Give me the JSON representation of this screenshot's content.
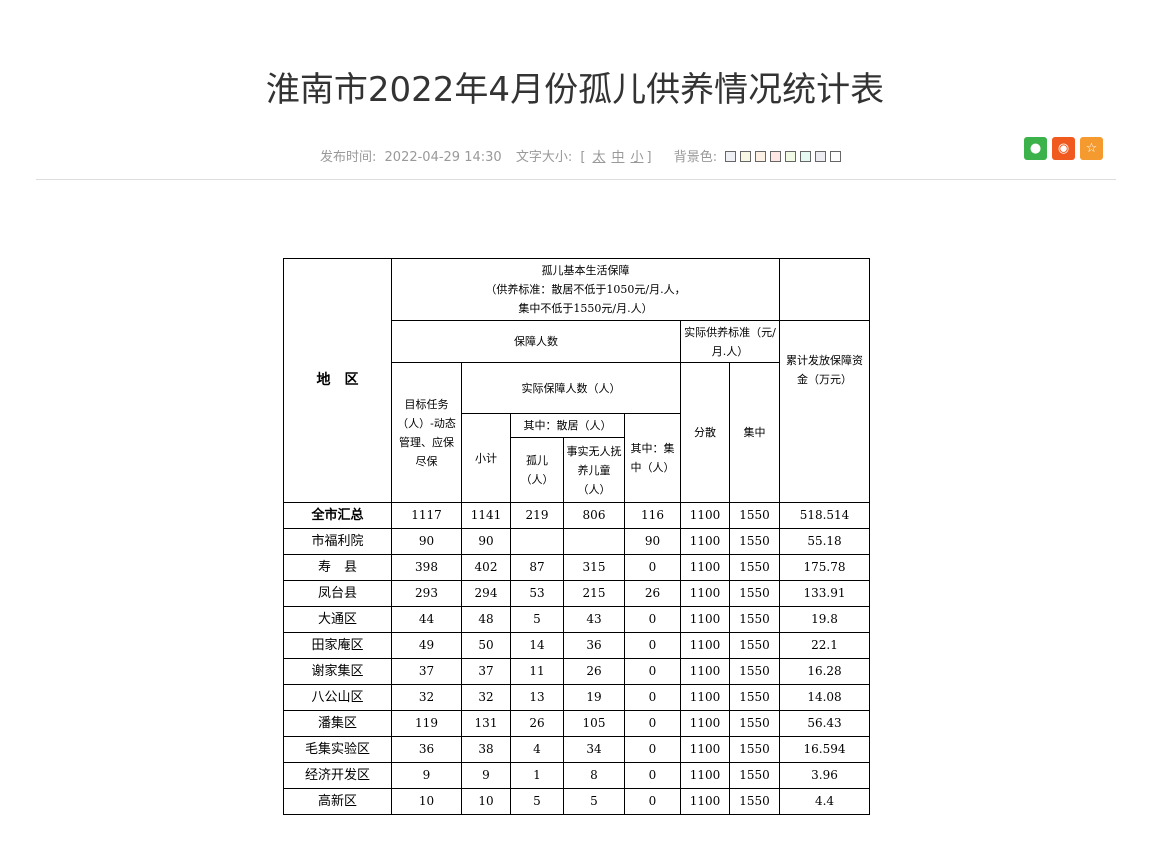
{
  "title": "淮南市2022年4月份孤儿供养情况统计表",
  "meta": {
    "publish_label": "发布时间:",
    "publish_time": "2022-04-29 14:30",
    "font_size_label": "文字大小:",
    "bracket_open": "[",
    "size_large": "太",
    "size_medium": "中",
    "size_small": "小",
    "bracket_close": "]",
    "bg_label": "背景色:",
    "bg_colors": [
      "#eef0f5",
      "#f8f8e4",
      "#fdf0e4",
      "#fde6e4",
      "#f0fae4",
      "#e4faf2",
      "#ececf2",
      "#ffffff"
    ]
  },
  "share": {
    "wechat_color": "#3bb34a",
    "weibo_color": "#f05a1e",
    "favorite_color": "#f59a2e"
  },
  "table": {
    "h_region": "地　区",
    "h_main": "孤儿基本生活保障",
    "h_main_sub1": "（供养标准：散居不低于1050元/月.人，",
    "h_main_sub2": "集中不低于1550元/月.人）",
    "h_people": "保障人数",
    "h_standard": "实际供养标准（元/月.人）",
    "h_total_fund": "累计发放保障资金（万元）",
    "h_target": "目标任务（人）-动态管理、应保尽保",
    "h_actual": "实际保障人数（人）",
    "h_scattered_std": "分散",
    "h_central_std": "集中",
    "h_subtotal": "小计",
    "h_scattered": "其中：散居（人）",
    "h_central": "其中：集中（人）",
    "h_orphan": "孤儿（人）",
    "h_defacto": "事实无人抚养儿童（人）",
    "rows": [
      [
        "全市汇总",
        "1117",
        "1141",
        "219",
        "806",
        "116",
        "1100",
        "1550",
        "518.514"
      ],
      [
        "市福利院",
        "90",
        "90",
        "",
        "",
        "90",
        "1100",
        "1550",
        "55.18"
      ],
      [
        "寿　县",
        "398",
        "402",
        "87",
        "315",
        "0",
        "1100",
        "1550",
        "175.78"
      ],
      [
        "凤台县",
        "293",
        "294",
        "53",
        "215",
        "26",
        "1100",
        "1550",
        "133.91"
      ],
      [
        "大通区",
        "44",
        "48",
        "5",
        "43",
        "0",
        "1100",
        "1550",
        "19.8"
      ],
      [
        "田家庵区",
        "49",
        "50",
        "14",
        "36",
        "0",
        "1100",
        "1550",
        "22.1"
      ],
      [
        "谢家集区",
        "37",
        "37",
        "11",
        "26",
        "0",
        "1100",
        "1550",
        "16.28"
      ],
      [
        "八公山区",
        "32",
        "32",
        "13",
        "19",
        "0",
        "1100",
        "1550",
        "14.08"
      ],
      [
        "潘集区",
        "119",
        "131",
        "26",
        "105",
        "0",
        "1100",
        "1550",
        "56.43"
      ],
      [
        "毛集实验区",
        "36",
        "38",
        "4",
        "34",
        "0",
        "1100",
        "1550",
        "16.594"
      ],
      [
        "经济开发区",
        "9",
        "9",
        "1",
        "8",
        "0",
        "1100",
        "1550",
        "3.96"
      ],
      [
        "高新区",
        "10",
        "10",
        "5",
        "5",
        "0",
        "1100",
        "1550",
        "4.4"
      ]
    ]
  }
}
